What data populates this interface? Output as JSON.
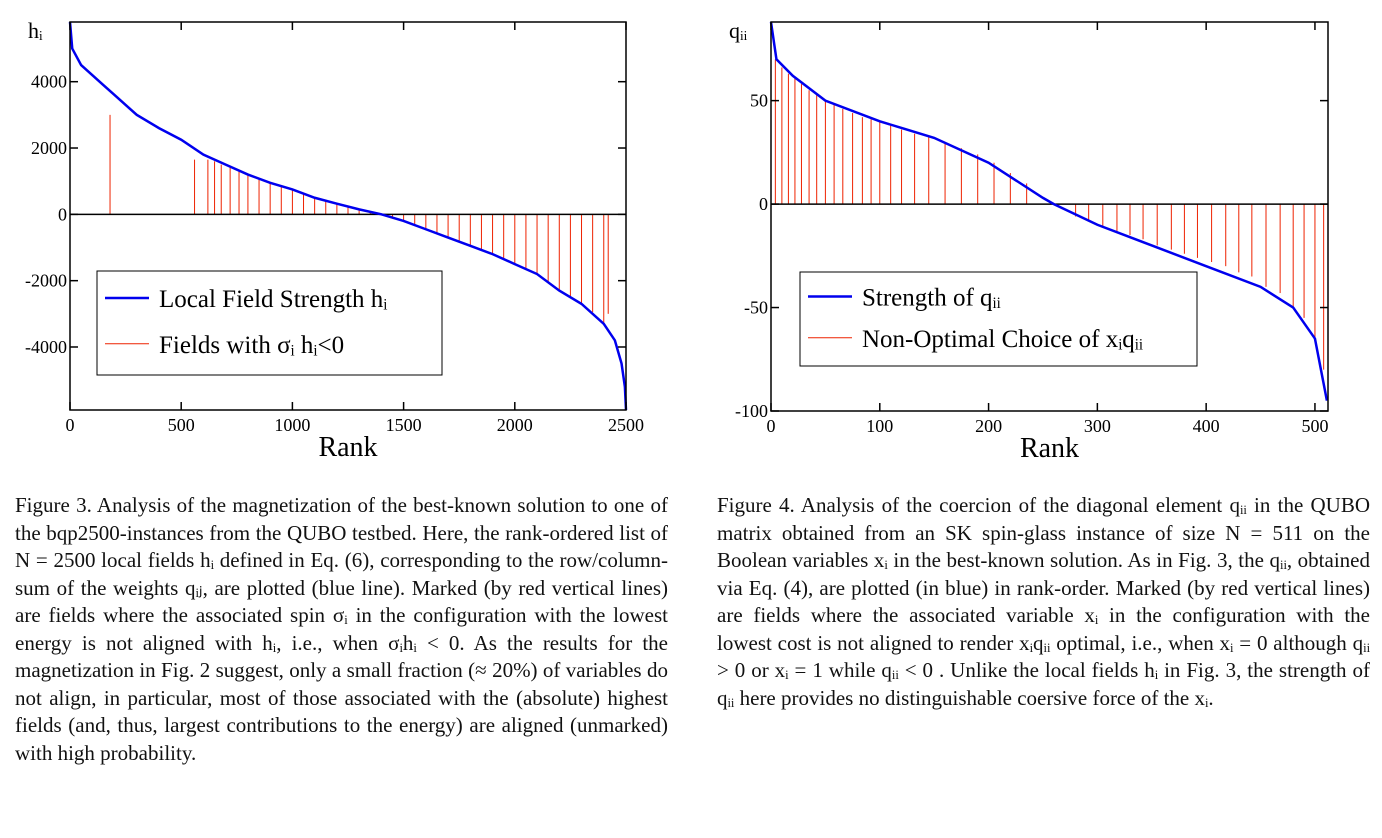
{
  "chart_data": [
    {
      "type": "line",
      "y_label": "hᵢ",
      "x_label": "Rank",
      "legend": "lower left",
      "xlim": [
        0,
        2500
      ],
      "ylim": [
        -5900,
        5800
      ],
      "xticks": [
        0,
        500,
        1000,
        1500,
        2000,
        2500
      ],
      "yticks": [
        -4000,
        -2000,
        0,
        2000,
        4000
      ],
      "series": [
        {
          "name": "Local Field Strength hᵢ",
          "color": "#0000ee",
          "x": [
            0,
            10,
            50,
            100,
            150,
            200,
            300,
            400,
            500,
            600,
            700,
            800,
            900,
            1000,
            1100,
            1200,
            1300,
            1400,
            1500,
            1600,
            1700,
            1800,
            1900,
            2000,
            2100,
            2200,
            2300,
            2400,
            2450,
            2480,
            2495,
            2500
          ],
          "values": [
            5800,
            5000,
            4500,
            4200,
            3900,
            3600,
            3000,
            2600,
            2250,
            1800,
            1500,
            1200,
            950,
            750,
            500,
            320,
            150,
            0,
            -200,
            -450,
            -700,
            -950,
            -1200,
            -1500,
            -1800,
            -2300,
            -2700,
            -3300,
            -3800,
            -4500,
            -5200,
            -5900
          ]
        },
        {
          "name": "Fields with σᵢ hᵢ<0",
          "color": "#ee2200",
          "style": "stem",
          "x": [
            180,
            560,
            620,
            650,
            680,
            720,
            760,
            800,
            850,
            900,
            950,
            1000,
            1050,
            1100,
            1150,
            1200,
            1250,
            1300,
            1350,
            1450,
            1500,
            1550,
            1600,
            1650,
            1700,
            1750,
            1800,
            1850,
            1900,
            1950,
            2000,
            2050,
            2100,
            2150,
            2200,
            2250,
            2300,
            2350,
            2400,
            2420
          ],
          "values": [
            3000,
            1650,
            1650,
            1600,
            1500,
            1450,
            1350,
            1200,
            1100,
            950,
            850,
            750,
            620,
            500,
            420,
            320,
            230,
            150,
            80,
            -100,
            -200,
            -330,
            -450,
            -580,
            -700,
            -820,
            -950,
            -1080,
            -1200,
            -1350,
            -1500,
            -1650,
            -1800,
            -2050,
            -2300,
            -2500,
            -2700,
            -2950,
            -3300,
            -3000
          ]
        }
      ]
    },
    {
      "type": "line",
      "y_label": "qᵢᵢ",
      "x_label": "Rank",
      "legend": "lower left",
      "xlim": [
        0,
        512
      ],
      "ylim": [
        -100,
        88
      ],
      "xticks": [
        0,
        100,
        200,
        300,
        400,
        500
      ],
      "yticks": [
        -100,
        -50,
        0,
        50
      ],
      "series": [
        {
          "name": "Strength of qᵢᵢ",
          "color": "#0000ee",
          "x": [
            0,
            5,
            20,
            50,
            100,
            150,
            200,
            250,
            260,
            300,
            350,
            400,
            450,
            480,
            500,
            511
          ],
          "values": [
            88,
            70,
            62,
            50,
            40,
            32,
            20,
            3,
            0,
            -10,
            -20,
            -30,
            -40,
            -50,
            -65,
            -95
          ]
        },
        {
          "name": "Non-Optimal Choice of xᵢqᵢᵢ",
          "color": "#ee2200",
          "style": "stem",
          "x": [
            4,
            10,
            16,
            22,
            28,
            35,
            42,
            50,
            58,
            66,
            75,
            84,
            92,
            100,
            110,
            120,
            132,
            145,
            160,
            175,
            190,
            205,
            220,
            235,
            280,
            292,
            305,
            318,
            330,
            342,
            355,
            368,
            380,
            392,
            405,
            418,
            430,
            442,
            455,
            468,
            480,
            490,
            500,
            508
          ],
          "values": [
            70,
            66,
            63,
            61,
            58,
            55,
            53,
            50,
            48,
            46,
            44,
            42,
            41,
            40,
            38,
            36,
            34,
            33,
            30,
            27,
            24,
            20,
            15,
            10,
            -6,
            -8,
            -11,
            -13,
            -15,
            -17,
            -20,
            -22,
            -24,
            -26,
            -28,
            -30,
            -33,
            -35,
            -40,
            -43,
            -50,
            -55,
            -65,
            -80
          ]
        }
      ]
    }
  ],
  "captions": [
    "Figure 3. Analysis of the magnetization of the best-known solution to one of the bqp2500-instances from the QUBO testbed. Here, the rank-ordered list of N = 2500 local fields hᵢ defined in Eq. (6), corresponding to the row/column-sum of the weights qᵢⱼ, are plotted (blue line). Marked (by red vertical lines) are fields where the associated spin σᵢ in the configuration with the lowest energy is not aligned with hᵢ, i.e., when σᵢhᵢ < 0. As the results for the magnetization in Fig. 2 suggest, only a small fraction (≈ 20%) of variables do not align, in particular, most of those associated with the (absolute) highest fields (and, thus, largest contributions to the energy) are aligned (unmarked) with high probability.",
    "Figure 4. Analysis of the coercion of the diagonal element qᵢᵢ in the QUBO matrix obtained from an SK spin-glass instance of size N = 511 on the Boolean variables xᵢ in the best-known solution. As in Fig. 3, the qᵢᵢ, obtained via Eq. (4), are plotted (in blue) in rank-order. Marked (by red vertical lines) are fields where the associated variable xᵢ in the configuration with the lowest cost is not aligned to render xᵢqᵢᵢ optimal, i.e., when xᵢ = 0 although qᵢᵢ > 0 or xᵢ = 1 while qᵢᵢ < 0 . Unlike the local fields hᵢ in Fig. 3, the strength of qᵢᵢ here provides no distinguishable coersive force of the xᵢ."
  ]
}
